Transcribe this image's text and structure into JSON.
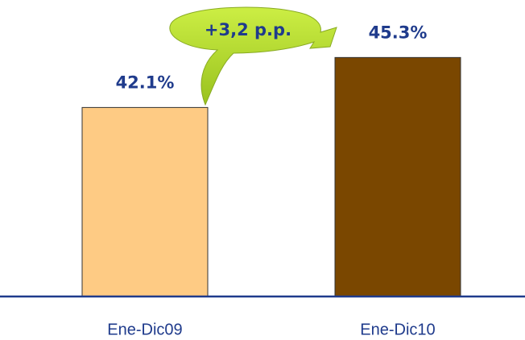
{
  "chart_data": {
    "type": "bar",
    "annotation": "+3,2 p.p.",
    "categories": [
      "Ene-Dic09",
      "Ene-Dic10"
    ],
    "values": [
      42.1,
      45.3
    ],
    "value_labels": [
      "42.1%",
      "45.3%"
    ],
    "colors": [
      "#fecb84",
      "#7a4700"
    ],
    "ylim": [
      30,
      48
    ]
  }
}
